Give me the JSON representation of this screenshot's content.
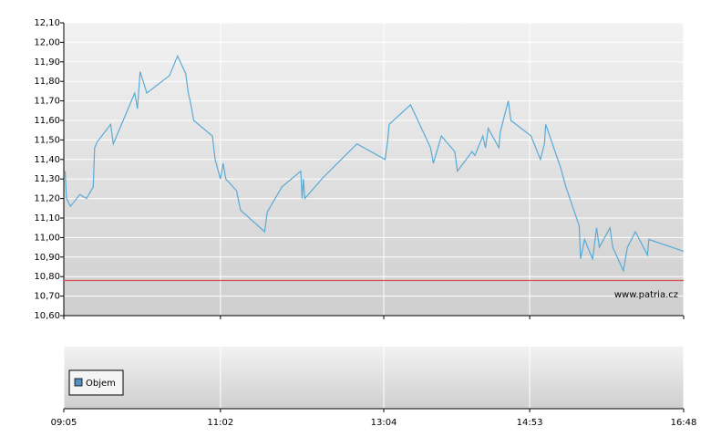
{
  "chart_data": {
    "type": "line",
    "x": [
      "09:06",
      "09:07",
      "09:10",
      "09:17",
      "09:22",
      "09:27",
      "09:28",
      "09:30",
      "09:40",
      "09:42",
      "09:58",
      "10:00",
      "10:02",
      "10:07",
      "10:24",
      "10:30",
      "10:36",
      "10:38",
      "10:40",
      "10:42",
      "10:56",
      "10:58",
      "11:02",
      "11:04",
      "11:06",
      "11:14",
      "11:17",
      "11:35",
      "11:37",
      "11:42",
      "11:48",
      "12:02",
      "12:03",
      "12:04",
      "12:05",
      "12:19",
      "12:44",
      "13:05",
      "13:07",
      "13:08",
      "13:24",
      "13:39",
      "13:41",
      "13:47",
      "13:57",
      "13:59",
      "14:10",
      "14:12",
      "14:18",
      "14:20",
      "14:22",
      "14:30",
      "14:31",
      "14:37",
      "14:39",
      "14:54",
      "15:01",
      "15:04",
      "15:05",
      "15:16",
      "15:20",
      "15:30",
      "15:31",
      "15:34",
      "15:40",
      "15:43",
      "15:45",
      "15:53",
      "15:55",
      "16:03",
      "16:06",
      "16:12",
      "16:21",
      "16:22",
      "16:48"
    ],
    "values": [
      11.34,
      11.2,
      11.16,
      11.22,
      11.2,
      11.26,
      11.46,
      11.49,
      11.58,
      11.48,
      11.74,
      11.66,
      11.85,
      11.74,
      11.83,
      11.93,
      11.84,
      11.74,
      11.68,
      11.6,
      11.52,
      11.4,
      11.3,
      11.38,
      11.3,
      11.24,
      11.14,
      11.03,
      11.13,
      11.19,
      11.26,
      11.34,
      11.2,
      11.3,
      11.2,
      11.31,
      11.48,
      11.4,
      11.5,
      11.58,
      11.68,
      11.46,
      11.38,
      11.52,
      11.44,
      11.34,
      11.44,
      11.42,
      11.52,
      11.46,
      11.56,
      11.46,
      11.54,
      11.7,
      11.6,
      11.52,
      11.4,
      11.48,
      11.58,
      11.36,
      11.26,
      11.06,
      10.89,
      10.99,
      10.89,
      11.05,
      10.95,
      11.05,
      10.95,
      10.83,
      10.95,
      11.03,
      10.91,
      10.99,
      10.93
    ],
    "color": "#5aaad6",
    "reference_line": 10.78,
    "reference_color": "#d9534f",
    "xlim": [
      "09:05",
      "16:48"
    ],
    "xticks": [
      "09:05",
      "11:02",
      "13:04",
      "14:53",
      "16:48"
    ],
    "ylim": [
      10.6,
      12.1
    ],
    "yticks": [
      {
        "value": 10.6,
        "label": "10,60"
      },
      {
        "value": 10.7,
        "label": "10,70"
      },
      {
        "value": 10.8,
        "label": "10,80"
      },
      {
        "value": 10.9,
        "label": "10,90"
      },
      {
        "value": 11,
        "label": "11,00"
      },
      {
        "value": 11.1,
        "label": "11,10"
      },
      {
        "value": 11.2,
        "label": "11,20"
      },
      {
        "value": 11.3,
        "label": "11,30"
      },
      {
        "value": 11.4,
        "label": "11,40"
      },
      {
        "value": 11.5,
        "label": "11,50"
      },
      {
        "value": 11.6,
        "label": "11,60"
      },
      {
        "value": 11.7,
        "label": "11,70"
      },
      {
        "value": 11.8,
        "label": "11,80"
      },
      {
        "value": 11.9,
        "label": "11,90"
      },
      {
        "value": 12,
        "label": "12,00"
      },
      {
        "value": 12.1,
        "label": "12,10"
      }
    ],
    "grid": true,
    "watermark": "www.patria.cz",
    "volume": {
      "legend": "Objem",
      "color": "#4f8fc4"
    }
  }
}
